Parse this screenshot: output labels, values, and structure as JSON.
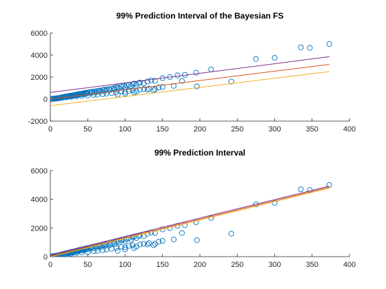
{
  "chart_data": [
    {
      "type": "scatter",
      "title": "99% Prediction Interval of the Bayesian FS",
      "xlabel": "",
      "ylabel": "",
      "xlim": [
        0,
        400
      ],
      "ylim": [
        -2000,
        6000
      ],
      "xticks": [
        0,
        50,
        100,
        150,
        200,
        250,
        300,
        350,
        400
      ],
      "yticks": [
        -2000,
        0,
        2000,
        4000,
        6000
      ],
      "grid": false,
      "legend": "none",
      "series": [
        {
          "kind": "points",
          "color": "#0072bd",
          "points": [
            [
              1,
              10
            ],
            [
              2,
              20
            ],
            [
              3,
              15
            ],
            [
              4,
              40
            ],
            [
              5,
              30
            ],
            [
              6,
              50
            ],
            [
              7,
              60
            ],
            [
              8,
              45
            ],
            [
              9,
              80
            ],
            [
              10,
              90
            ],
            [
              11,
              70
            ],
            [
              12,
              110
            ],
            [
              13,
              120
            ],
            [
              14,
              100
            ],
            [
              15,
              150
            ],
            [
              16,
              170
            ],
            [
              17,
              140
            ],
            [
              18,
              200
            ],
            [
              19,
              180
            ],
            [
              20,
              230
            ],
            [
              21,
              210
            ],
            [
              22,
              160
            ],
            [
              23,
              260
            ],
            [
              24,
              240
            ],
            [
              25,
              280
            ],
            [
              26,
              300
            ],
            [
              27,
              270
            ],
            [
              28,
              320
            ],
            [
              29,
              290
            ],
            [
              30,
              340
            ],
            [
              31,
              360
            ],
            [
              32,
              310
            ],
            [
              33,
              380
            ],
            [
              34,
              400
            ],
            [
              35,
              350
            ],
            [
              36,
              420
            ],
            [
              37,
              440
            ],
            [
              38,
              390
            ],
            [
              39,
              470
            ],
            [
              40,
              450
            ],
            [
              41,
              480
            ],
            [
              42,
              500
            ],
            [
              43,
              430
            ],
            [
              44,
              520
            ],
            [
              45,
              540
            ],
            [
              46,
              460
            ],
            [
              47,
              560
            ],
            [
              48,
              580
            ],
            [
              49,
              510
            ],
            [
              50,
              600
            ],
            [
              52,
              620
            ],
            [
              54,
              560
            ],
            [
              55,
              650
            ],
            [
              56,
              680
            ],
            [
              58,
              600
            ],
            [
              60,
              700
            ],
            [
              62,
              720
            ],
            [
              63,
              640
            ],
            [
              65,
              760
            ],
            [
              66,
              780
            ],
            [
              68,
              700
            ],
            [
              70,
              820
            ],
            [
              72,
              850
            ],
            [
              74,
              760
            ],
            [
              75,
              880
            ],
            [
              78,
              900
            ],
            [
              80,
              820
            ],
            [
              82,
              950
            ],
            [
              85,
              1000
            ],
            [
              86,
              880
            ],
            [
              88,
              1050
            ],
            [
              90,
              1080
            ],
            [
              92,
              980
            ],
            [
              95,
              1150
            ],
            [
              98,
              1200
            ],
            [
              100,
              1100
            ],
            [
              102,
              1250
            ],
            [
              105,
              1300
            ],
            [
              108,
              1180
            ],
            [
              110,
              1350
            ],
            [
              112,
              1400
            ],
            [
              115,
              1300
            ],
            [
              118,
              1450
            ],
            [
              120,
              1500
            ],
            [
              125,
              1420
            ],
            [
              130,
              1600
            ],
            [
              135,
              1700
            ],
            [
              140,
              1650
            ],
            [
              150,
              1900
            ],
            [
              160,
              2000
            ],
            [
              170,
              2150
            ],
            [
              180,
              2200
            ],
            [
              195,
              2400
            ],
            [
              215,
              2700
            ],
            [
              275,
              3650
            ],
            [
              300,
              3750
            ],
            [
              335,
              4700
            ],
            [
              347,
              4650
            ],
            [
              373,
              5000
            ],
            [
              28,
              200
            ],
            [
              35,
              250
            ],
            [
              42,
              300
            ],
            [
              50,
              320
            ],
            [
              58,
              380
            ],
            [
              63,
              400
            ],
            [
              70,
              450
            ],
            [
              75,
              500
            ],
            [
              82,
              550
            ],
            [
              88,
              600
            ],
            [
              95,
              700
            ],
            [
              100,
              650
            ],
            [
              105,
              750
            ],
            [
              110,
              800
            ],
            [
              115,
              700
            ],
            [
              120,
              850
            ],
            [
              125,
              900
            ],
            [
              132,
              950
            ],
            [
              138,
              800
            ],
            [
              145,
              1050
            ],
            [
              150,
              1100
            ],
            [
              165,
              1200
            ],
            [
              176,
              1650
            ],
            [
              196,
              1150
            ],
            [
              242,
              1600
            ],
            [
              90,
              400
            ],
            [
              100,
              500
            ],
            [
              112,
              600
            ],
            [
              130,
              850
            ],
            [
              140,
              900
            ]
          ]
        },
        {
          "kind": "line",
          "color": "#7e2f8e",
          "x": [
            0,
            373
          ],
          "y": [
            600,
            3850
          ]
        },
        {
          "kind": "line",
          "color": "#d95319",
          "x": [
            0,
            373
          ],
          "y": [
            0,
            3150
          ]
        },
        {
          "kind": "line",
          "color": "#edb120",
          "x": [
            0,
            373
          ],
          "y": [
            -600,
            2500
          ]
        }
      ]
    },
    {
      "type": "scatter",
      "title": "99% Prediction Interval",
      "xlabel": "",
      "ylabel": "",
      "xlim": [
        0,
        400
      ],
      "ylim": [
        0,
        6000
      ],
      "xticks": [
        0,
        50,
        100,
        150,
        200,
        250,
        300,
        350,
        400
      ],
      "yticks": [
        0,
        2000,
        4000,
        6000
      ],
      "grid": false,
      "legend": "none",
      "series": [
        {
          "kind": "points",
          "color": "#0072bd",
          "points": [
            [
              1,
              10
            ],
            [
              2,
              20
            ],
            [
              3,
              15
            ],
            [
              4,
              40
            ],
            [
              5,
              30
            ],
            [
              6,
              50
            ],
            [
              7,
              60
            ],
            [
              8,
              45
            ],
            [
              9,
              80
            ],
            [
              10,
              90
            ],
            [
              11,
              70
            ],
            [
              12,
              110
            ],
            [
              13,
              120
            ],
            [
              14,
              100
            ],
            [
              15,
              150
            ],
            [
              16,
              170
            ],
            [
              17,
              140
            ],
            [
              18,
              200
            ],
            [
              19,
              180
            ],
            [
              20,
              230
            ],
            [
              21,
              210
            ],
            [
              22,
              160
            ],
            [
              23,
              260
            ],
            [
              24,
              240
            ],
            [
              25,
              280
            ],
            [
              26,
              300
            ],
            [
              27,
              270
            ],
            [
              28,
              320
            ],
            [
              29,
              290
            ],
            [
              30,
              340
            ],
            [
              31,
              360
            ],
            [
              32,
              310
            ],
            [
              33,
              380
            ],
            [
              34,
              400
            ],
            [
              35,
              350
            ],
            [
              36,
              420
            ],
            [
              37,
              440
            ],
            [
              38,
              390
            ],
            [
              39,
              470
            ],
            [
              40,
              450
            ],
            [
              41,
              480
            ],
            [
              42,
              500
            ],
            [
              43,
              430
            ],
            [
              44,
              520
            ],
            [
              45,
              540
            ],
            [
              46,
              460
            ],
            [
              47,
              560
            ],
            [
              48,
              580
            ],
            [
              49,
              510
            ],
            [
              50,
              600
            ],
            [
              52,
              620
            ],
            [
              54,
              560
            ],
            [
              55,
              650
            ],
            [
              56,
              680
            ],
            [
              58,
              600
            ],
            [
              60,
              700
            ],
            [
              62,
              720
            ],
            [
              63,
              640
            ],
            [
              65,
              760
            ],
            [
              66,
              780
            ],
            [
              68,
              700
            ],
            [
              70,
              820
            ],
            [
              72,
              850
            ],
            [
              74,
              760
            ],
            [
              75,
              880
            ],
            [
              78,
              900
            ],
            [
              80,
              820
            ],
            [
              82,
              950
            ],
            [
              85,
              1000
            ],
            [
              86,
              880
            ],
            [
              88,
              1050
            ],
            [
              90,
              1080
            ],
            [
              92,
              980
            ],
            [
              95,
              1150
            ],
            [
              98,
              1200
            ],
            [
              100,
              1100
            ],
            [
              102,
              1250
            ],
            [
              105,
              1300
            ],
            [
              108,
              1180
            ],
            [
              110,
              1350
            ],
            [
              112,
              1400
            ],
            [
              115,
              1300
            ],
            [
              118,
              1450
            ],
            [
              120,
              1500
            ],
            [
              125,
              1420
            ],
            [
              130,
              1600
            ],
            [
              135,
              1700
            ],
            [
              140,
              1650
            ],
            [
              150,
              1900
            ],
            [
              160,
              2000
            ],
            [
              170,
              2150
            ],
            [
              180,
              2200
            ],
            [
              195,
              2400
            ],
            [
              215,
              2700
            ],
            [
              275,
              3650
            ],
            [
              300,
              3750
            ],
            [
              335,
              4700
            ],
            [
              347,
              4650
            ],
            [
              373,
              5000
            ],
            [
              28,
              200
            ],
            [
              35,
              250
            ],
            [
              42,
              300
            ],
            [
              50,
              320
            ],
            [
              58,
              380
            ],
            [
              63,
              400
            ],
            [
              70,
              450
            ],
            [
              75,
              500
            ],
            [
              82,
              550
            ],
            [
              88,
              600
            ],
            [
              95,
              700
            ],
            [
              100,
              650
            ],
            [
              105,
              750
            ],
            [
              110,
              800
            ],
            [
              115,
              700
            ],
            [
              120,
              850
            ],
            [
              125,
              900
            ],
            [
              132,
              950
            ],
            [
              138,
              800
            ],
            [
              145,
              1050
            ],
            [
              150,
              1100
            ],
            [
              165,
              1200
            ],
            [
              176,
              1650
            ],
            [
              196,
              1150
            ],
            [
              242,
              1600
            ],
            [
              90,
              400
            ],
            [
              100,
              500
            ],
            [
              112,
              600
            ],
            [
              130,
              850
            ],
            [
              140,
              900
            ]
          ]
        },
        {
          "kind": "line",
          "color": "#7e2f8e",
          "x": [
            0,
            373
          ],
          "y": [
            120,
            4920
          ]
        },
        {
          "kind": "line",
          "color": "#d95319",
          "x": [
            0,
            373
          ],
          "y": [
            50,
            4850
          ]
        },
        {
          "kind": "line",
          "color": "#edb120",
          "x": [
            0,
            373
          ],
          "y": [
            -20,
            4780
          ]
        }
      ]
    }
  ]
}
